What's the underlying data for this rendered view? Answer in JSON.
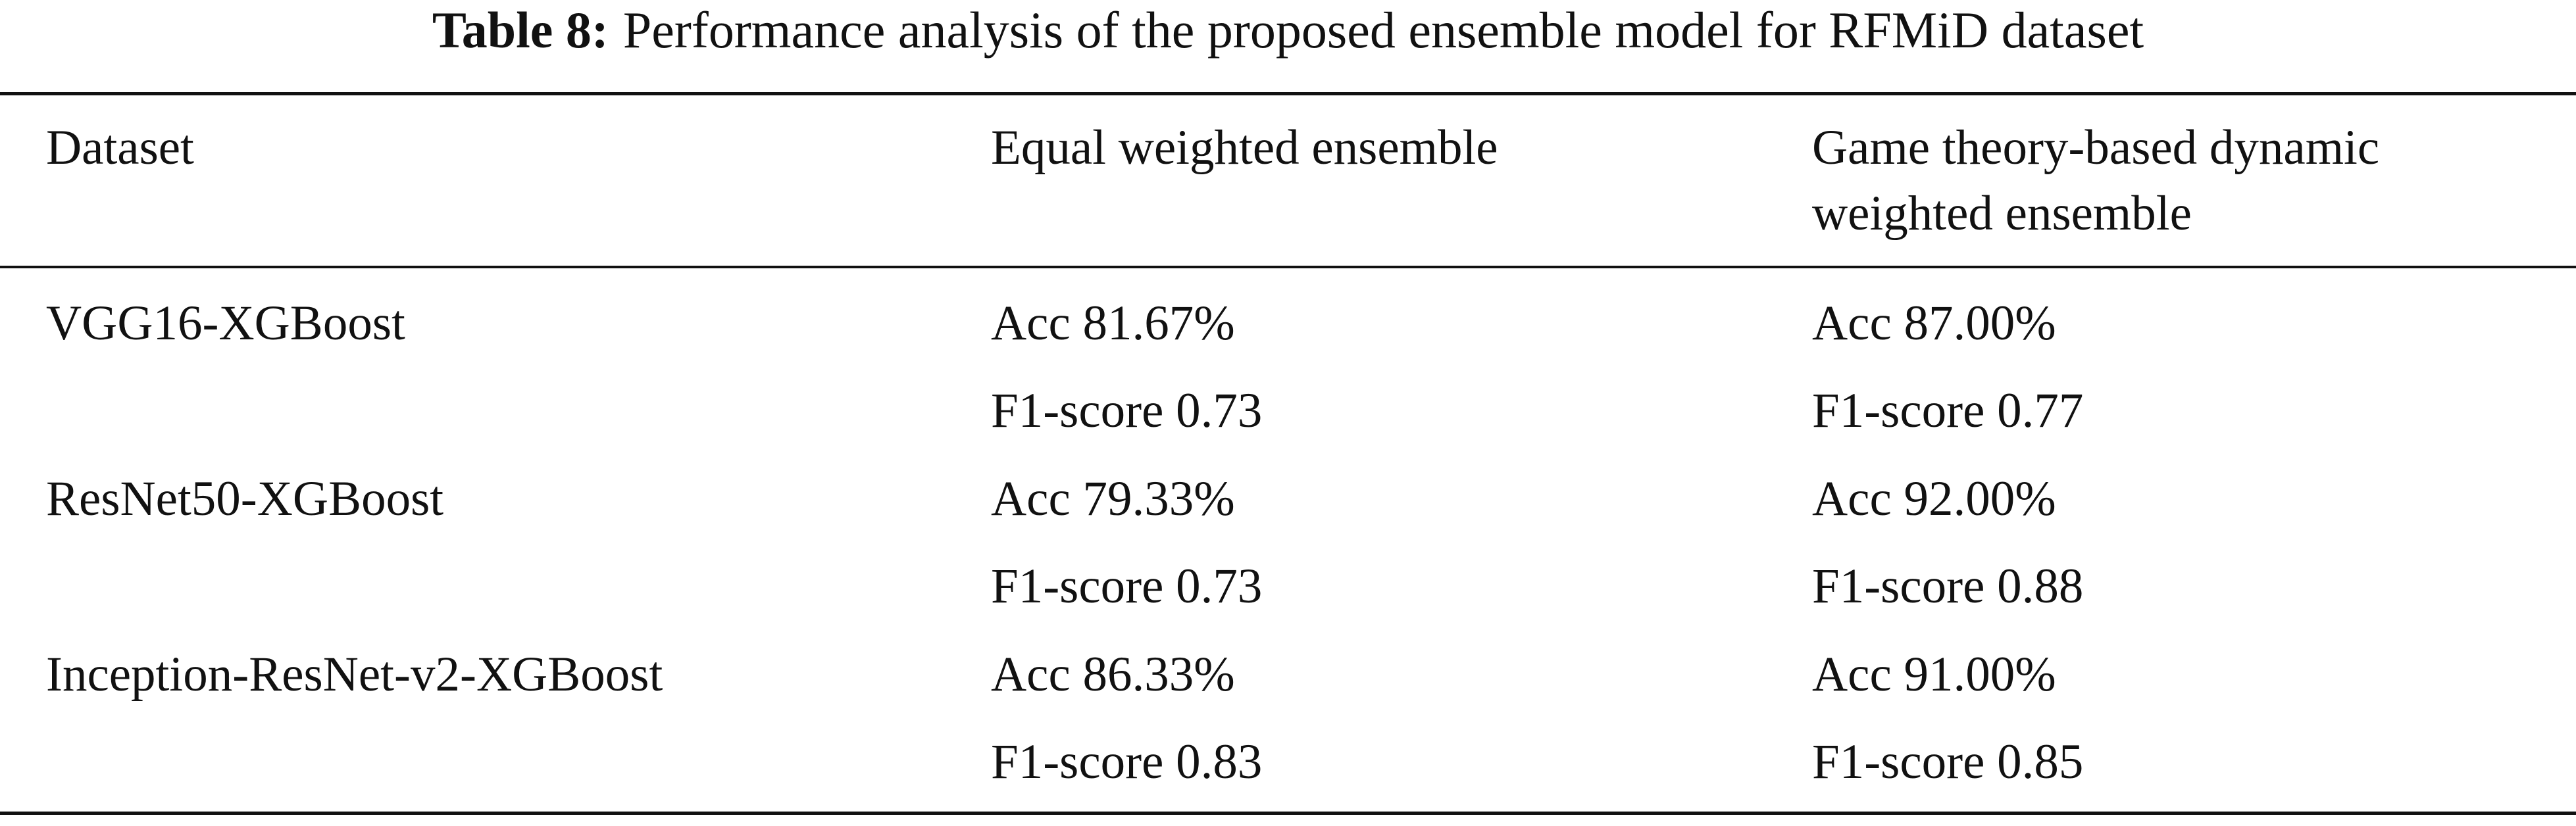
{
  "title": {
    "label": "Table 8:",
    "text": "Performance analysis of the proposed ensemble model for RFMiD dataset"
  },
  "table": {
    "header": [
      "Dataset",
      "Equal weighted ensemble",
      "Game theory-based dynamic weighted ensemble"
    ],
    "groups": [
      {
        "dataset": "VGG16-XGBoost",
        "lines": [
          [
            "Acc 81.67%",
            "Acc 87.00%"
          ],
          [
            "F1-score 0.73",
            "F1-score 0.77"
          ]
        ]
      },
      {
        "dataset": "ResNet50-XGBoost",
        "lines": [
          [
            "Acc 79.33%",
            "Acc 92.00%"
          ],
          [
            "F1-score 0.73",
            "F1-score 0.88"
          ]
        ]
      },
      {
        "dataset": "Inception-ResNet-v2-XGBoost",
        "lines": [
          [
            "Acc 86.33%",
            "Acc 91.00%"
          ],
          [
            "F1-score 0.83",
            "F1-score 0.85"
          ]
        ]
      }
    ]
  }
}
